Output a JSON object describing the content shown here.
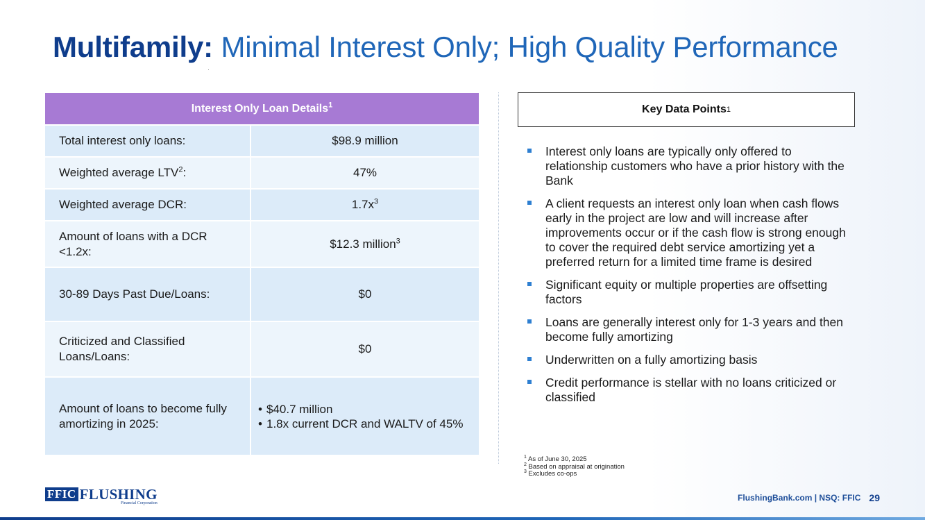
{
  "title": {
    "bold": "Multifamily:",
    "rest": "Minimal Interest Only; High Quality Performance"
  },
  "loan_table": {
    "header": "Interest Only Loan Details",
    "header_sup": "1",
    "rows": [
      {
        "label": "Total interest only loans:",
        "value": "$98.9 million"
      },
      {
        "label": "Weighted average LTV",
        "label_sup": "2",
        "label_suffix": ":",
        "value": "47%"
      },
      {
        "label": "Weighted average DCR:",
        "value": "1.7x",
        "value_sup": "3"
      },
      {
        "label": "Amount of loans with a DCR <1.2x:",
        "value": "$12.3 million",
        "value_sup": "3"
      },
      {
        "label": "30-89 Days Past Due/Loans:",
        "value": "$0"
      },
      {
        "label": "Criticized and Classified Loans/Loans:",
        "value": "$0"
      },
      {
        "label": "Amount of loans to become fully amortizing in 2025:",
        "bullets": [
          "$40.7 million",
          "1.8x current DCR and WALTV of 45%"
        ]
      }
    ]
  },
  "key_data": {
    "title": "Key Data Points",
    "title_sup": "1",
    "items": [
      "Interest only loans are typically only offered to relationship customers who have a prior history with the Bank",
      "A client requests an interest only loan when cash flows early in the project are low and will increase after improvements occur or if the cash flow is strong enough to cover the required debt service amortizing yet a preferred return for a limited time frame is desired",
      "Significant equity or multiple properties are offsetting factors",
      "Loans are generally interest only for 1-3 years and then become fully amortizing",
      "Underwritten on a fully amortizing basis",
      "Credit performance is stellar with no loans criticized or classified"
    ]
  },
  "footnotes": [
    {
      "num": "1",
      "text": "As of June 30, 2025"
    },
    {
      "num": "2",
      "text": "Based on appraisal at origination"
    },
    {
      "num": "3",
      "text": "Excludes co-ops"
    }
  ],
  "logo": {
    "box": "FFIC",
    "word": "FLUSHING",
    "sub": "Financial Corporation"
  },
  "footer": {
    "text": "FlushingBank.com | NSQ: FFIC",
    "page": "29"
  },
  "colors": {
    "title_bold": "#0f3d8c",
    "title_rest": "#1f66b8",
    "table_header": "#a77ad4",
    "row_dark": "#dcebf9",
    "row_light": "#edf5fc",
    "bullet": "#2e7fd1"
  }
}
